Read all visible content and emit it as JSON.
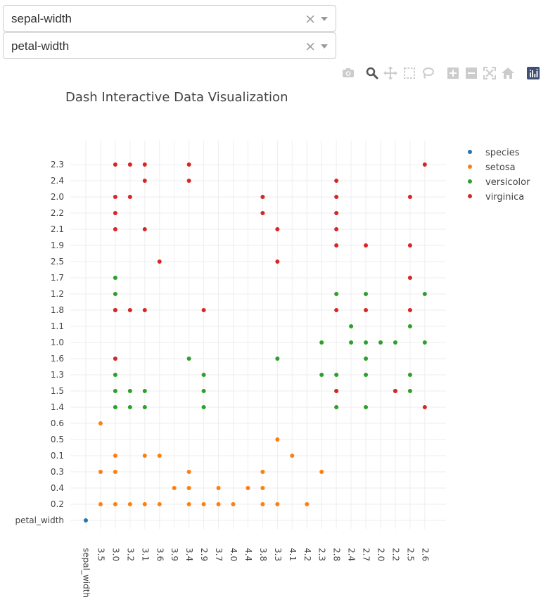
{
  "dropdowns": [
    {
      "value": "sepal-width",
      "clear": "×"
    },
    {
      "value": "petal-width",
      "clear": "×"
    }
  ],
  "modebar": {
    "icons": [
      "camera-icon",
      "zoom-icon",
      "pan-icon",
      "box-select-icon",
      "lasso-select-icon",
      "zoom-in-icon",
      "zoom-out-icon",
      "autoscale-icon",
      "reset-axes-icon",
      "plotly-logo-icon"
    ],
    "colors": {
      "inactive": "#cccccc",
      "active": "#555555",
      "logo": "#3f4f75"
    }
  },
  "chart_data": {
    "type": "scatter",
    "title": "Dash Interactive Data Visualization",
    "xlabel": "",
    "ylabel": "",
    "x_categories": [
      "sepal_width",
      "3.5",
      "3.0",
      "3.2",
      "3.1",
      "3.6",
      "3.9",
      "3.4",
      "2.9",
      "3.7",
      "4.0",
      "4.4",
      "3.8",
      "3.3",
      "4.1",
      "4.2",
      "2.3",
      "2.8",
      "2.4",
      "2.7",
      "2.0",
      "2.2",
      "2.5",
      "2.6"
    ],
    "y_categories": [
      "petal_width",
      "0.2",
      "0.4",
      "0.3",
      "0.1",
      "0.5",
      "0.6",
      "1.4",
      "1.5",
      "1.3",
      "1.6",
      "1.0",
      "1.1",
      "1.8",
      "1.2",
      "1.7",
      "2.5",
      "1.9",
      "2.1",
      "2.2",
      "2.0",
      "2.4",
      "2.3"
    ],
    "grid": true,
    "legend_position": "top-right",
    "series": [
      {
        "name": "species",
        "color": "#1f77b4",
        "points": [
          [
            "sepal_width",
            "petal_width"
          ]
        ]
      },
      {
        "name": "setosa",
        "color": "#ff7f0e",
        "points": [
          [
            "3.5",
            "0.2"
          ],
          [
            "3.0",
            "0.2"
          ],
          [
            "3.2",
            "0.2"
          ],
          [
            "3.1",
            "0.2"
          ],
          [
            "3.6",
            "0.2"
          ],
          [
            "3.4",
            "0.2"
          ],
          [
            "2.9",
            "0.2"
          ],
          [
            "3.7",
            "0.2"
          ],
          [
            "4.0",
            "0.2"
          ],
          [
            "3.8",
            "0.2"
          ],
          [
            "3.3",
            "0.2"
          ],
          [
            "4.2",
            "0.2"
          ],
          [
            "3.9",
            "0.4"
          ],
          [
            "3.4",
            "0.4"
          ],
          [
            "3.7",
            "0.4"
          ],
          [
            "4.4",
            "0.4"
          ],
          [
            "3.8",
            "0.4"
          ],
          [
            "3.5",
            "0.3"
          ],
          [
            "3.0",
            "0.3"
          ],
          [
            "3.4",
            "0.3"
          ],
          [
            "3.8",
            "0.3"
          ],
          [
            "2.3",
            "0.3"
          ],
          [
            "3.0",
            "0.1"
          ],
          [
            "3.1",
            "0.1"
          ],
          [
            "3.6",
            "0.1"
          ],
          [
            "4.1",
            "0.1"
          ],
          [
            "3.3",
            "0.5"
          ],
          [
            "3.5",
            "0.6"
          ]
        ]
      },
      {
        "name": "versicolor",
        "color": "#2ca02c",
        "points": [
          [
            "3.0",
            "1.4"
          ],
          [
            "3.2",
            "1.4"
          ],
          [
            "3.1",
            "1.4"
          ],
          [
            "2.9",
            "1.4"
          ],
          [
            "2.8",
            "1.4"
          ],
          [
            "2.7",
            "1.4"
          ],
          [
            "3.0",
            "1.5"
          ],
          [
            "3.2",
            "1.5"
          ],
          [
            "3.1",
            "1.5"
          ],
          [
            "2.9",
            "1.5"
          ],
          [
            "2.8",
            "1.5"
          ],
          [
            "2.2",
            "1.5"
          ],
          [
            "2.5",
            "1.5"
          ],
          [
            "3.0",
            "1.3"
          ],
          [
            "2.9",
            "1.3"
          ],
          [
            "2.3",
            "1.3"
          ],
          [
            "2.8",
            "1.3"
          ],
          [
            "2.7",
            "1.3"
          ],
          [
            "2.5",
            "1.3"
          ],
          [
            "3.4",
            "1.6"
          ],
          [
            "3.3",
            "1.6"
          ],
          [
            "2.7",
            "1.6"
          ],
          [
            "2.3",
            "1.0"
          ],
          [
            "2.4",
            "1.0"
          ],
          [
            "2.7",
            "1.0"
          ],
          [
            "2.0",
            "1.0"
          ],
          [
            "2.2",
            "1.0"
          ],
          [
            "2.6",
            "1.0"
          ],
          [
            "2.4",
            "1.1"
          ],
          [
            "2.5",
            "1.1"
          ],
          [
            "3.0",
            "1.8"
          ],
          [
            "3.0",
            "1.2"
          ],
          [
            "2.8",
            "1.2"
          ],
          [
            "2.7",
            "1.2"
          ],
          [
            "2.6",
            "1.2"
          ],
          [
            "3.0",
            "1.7"
          ]
        ]
      },
      {
        "name": "virginica",
        "color": "#d62728",
        "points": [
          [
            "3.0",
            "2.3"
          ],
          [
            "3.2",
            "2.3"
          ],
          [
            "3.1",
            "2.3"
          ],
          [
            "3.4",
            "2.3"
          ],
          [
            "2.6",
            "2.3"
          ],
          [
            "3.1",
            "2.4"
          ],
          [
            "3.4",
            "2.4"
          ],
          [
            "2.8",
            "2.4"
          ],
          [
            "3.0",
            "2.0"
          ],
          [
            "3.2",
            "2.0"
          ],
          [
            "3.8",
            "2.0"
          ],
          [
            "2.8",
            "2.0"
          ],
          [
            "2.5",
            "2.0"
          ],
          [
            "3.0",
            "2.2"
          ],
          [
            "3.8",
            "2.2"
          ],
          [
            "2.8",
            "2.2"
          ],
          [
            "3.0",
            "2.1"
          ],
          [
            "3.1",
            "2.1"
          ],
          [
            "3.3",
            "2.1"
          ],
          [
            "2.8",
            "2.1"
          ],
          [
            "2.8",
            "1.9"
          ],
          [
            "2.7",
            "1.9"
          ],
          [
            "2.5",
            "1.9"
          ],
          [
            "3.6",
            "2.5"
          ],
          [
            "3.3",
            "2.5"
          ],
          [
            "2.5",
            "1.7"
          ],
          [
            "3.0",
            "1.8"
          ],
          [
            "3.2",
            "1.8"
          ],
          [
            "3.1",
            "1.8"
          ],
          [
            "2.9",
            "1.8"
          ],
          [
            "2.8",
            "1.8"
          ],
          [
            "2.7",
            "1.8"
          ],
          [
            "2.5",
            "1.8"
          ],
          [
            "3.0",
            "1.6"
          ],
          [
            "2.8",
            "1.5"
          ],
          [
            "2.2",
            "1.5"
          ],
          [
            "2.6",
            "1.4"
          ]
        ]
      }
    ]
  }
}
